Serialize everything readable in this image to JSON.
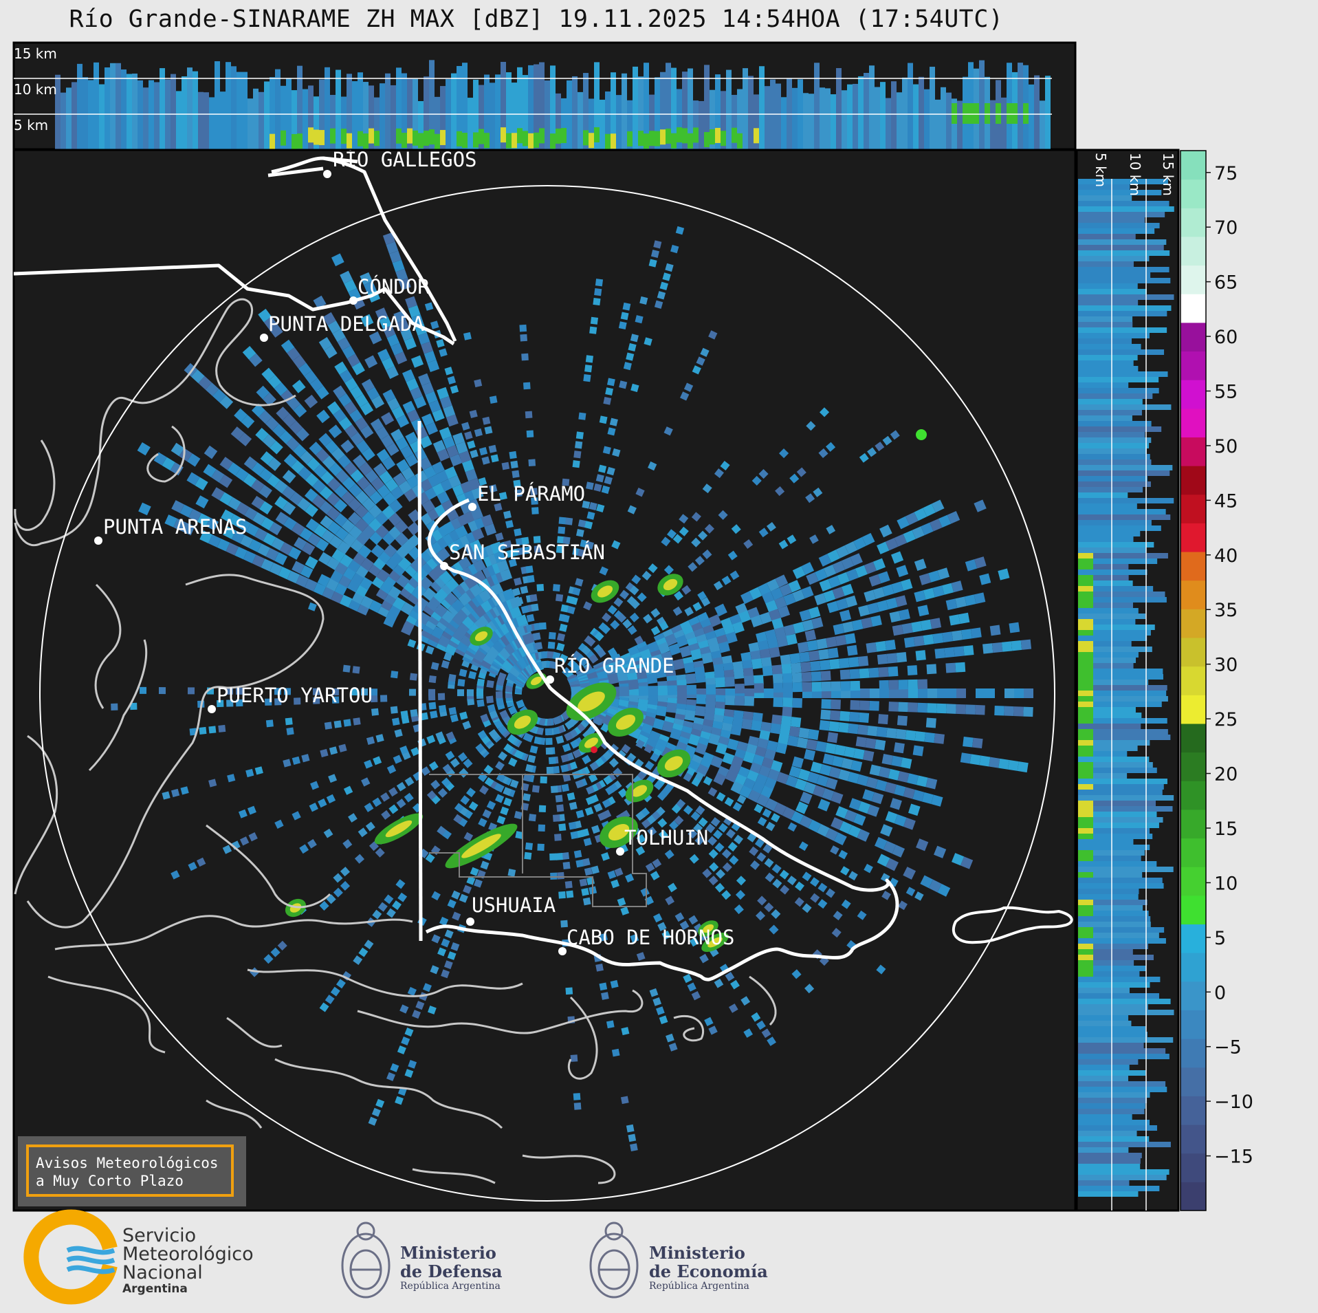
{
  "title": "Río Grande-SINARAME ZH MAX [dBZ] 19.11.2025 14:54HOA (17:54UTC)",
  "top_panel_labels": [
    "15 km",
    "10 km",
    "5 km"
  ],
  "side_panel_labels": [
    "5 km",
    "10 km",
    "15 km"
  ],
  "cities": [
    {
      "name": "RÍO GALLEGOS"
    },
    {
      "name": "CÓNDOR"
    },
    {
      "name": "PUNTA DELGADA"
    },
    {
      "name": "EL PÁRAMO"
    },
    {
      "name": "PUNTA ARENAS"
    },
    {
      "name": "SAN SEBASTIÁN"
    },
    {
      "name": "RÍO GRANDE"
    },
    {
      "name": "PUERTO YARTOU"
    },
    {
      "name": "TOLHUIN"
    },
    {
      "name": "USHUAIA"
    },
    {
      "name": "CABO DE HORNOS"
    }
  ],
  "colorbar": {
    "ticks": [
      "75",
      "70",
      "65",
      "60",
      "55",
      "50",
      "45",
      "40",
      "35",
      "30",
      "25",
      "20",
      "15",
      "10",
      "5",
      "0",
      "−5",
      "−10",
      "−15"
    ],
    "colors": [
      "#3b3f6e",
      "#3f4a7c",
      "#43558a",
      "#456299",
      "#456fa6",
      "#3f7bb4",
      "#3b88c0",
      "#3a95c9",
      "#2fa2d2",
      "#28b0dc",
      "#3fe030",
      "#45d030",
      "#3fbf2e",
      "#37a92a",
      "#2f9226",
      "#2b7c22",
      "#256a1e",
      "#ecec30",
      "#d8d830",
      "#c9c12c",
      "#d4a825",
      "#e08c1c",
      "#e06a1c",
      "#e0182e",
      "#c01020",
      "#a00818",
      "#c80b5e",
      "#e010c0",
      "#d010d0",
      "#b010b0",
      "#98109c",
      "#ffffff",
      "#def5ec",
      "#c8f0e0",
      "#b0ecd2",
      "#9ae8c6",
      "#86e0bc"
    ]
  },
  "avisos": {
    "line1": "Avisos Meteorológicos",
    "line2": "a Muy Corto Plazo"
  },
  "logos": {
    "smn": {
      "line1": "Servicio",
      "line2": "Meteorológico",
      "line3": "Nacional",
      "line4": "Argentina"
    },
    "defensa": {
      "line1": "Ministerio",
      "line2": "de Defensa",
      "line3": "República Argentina"
    },
    "economia": {
      "line1": "Ministerio",
      "line2": "de Economía",
      "line3": "República Argentina"
    }
  }
}
